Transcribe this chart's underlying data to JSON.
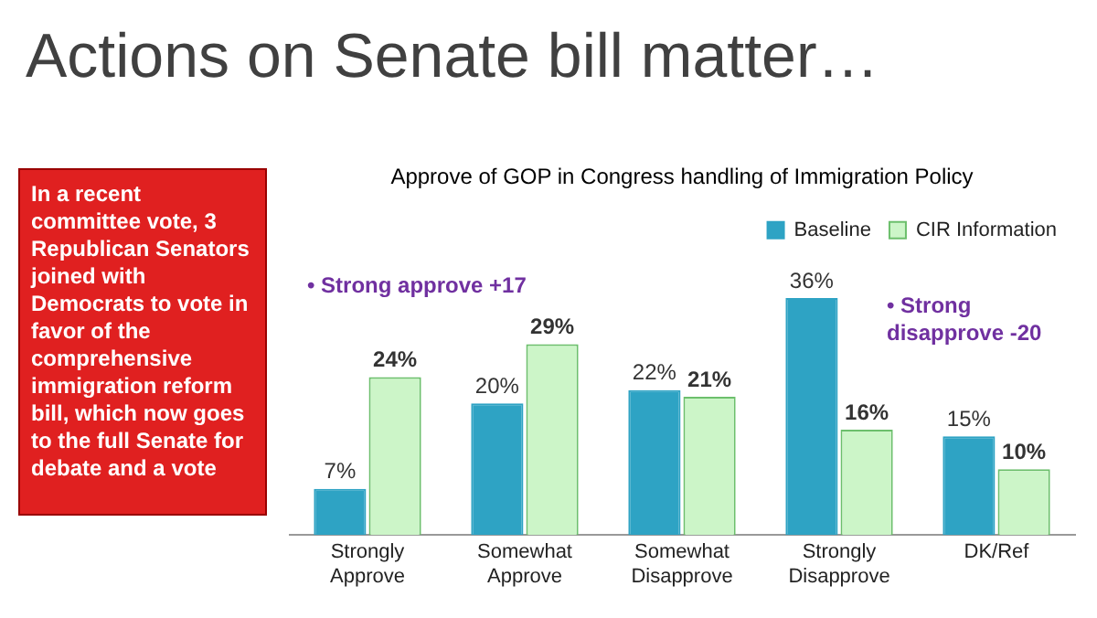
{
  "chart_data": {
    "type": "bar",
    "title": "Actions on Senate bill matter…",
    "subtitle": "Approve of GOP in Congress handling of Immigration Policy",
    "categories": [
      "Strongly Approve",
      "Somewhat Approve",
      "Somewhat Disapprove",
      "Strongly Disapprove",
      "DK/Ref"
    ],
    "series": [
      {
        "name": "Baseline",
        "color": "#2ea3c4",
        "values": [
          7,
          20,
          22,
          36,
          15
        ],
        "value_labels": [
          "7%",
          "20%",
          "22%",
          "36%",
          "15%"
        ]
      },
      {
        "name": "CIR Information",
        "color": "#ccf5c8",
        "values": [
          24,
          29,
          21,
          16,
          10
        ],
        "value_labels": [
          "24%",
          "29%",
          "21%",
          "16%",
          "10%"
        ]
      }
    ],
    "annotations": [
      "• Strong approve +17",
      "• Strong disapprove -20",
      "In a recent committee vote, 3 Republican Senators joined with Democrats to vote in favor of the comprehensive immigration reform bill, which now goes to the full Senate for debate and a vote"
    ],
    "legend": "top right",
    "grid": false
  }
}
